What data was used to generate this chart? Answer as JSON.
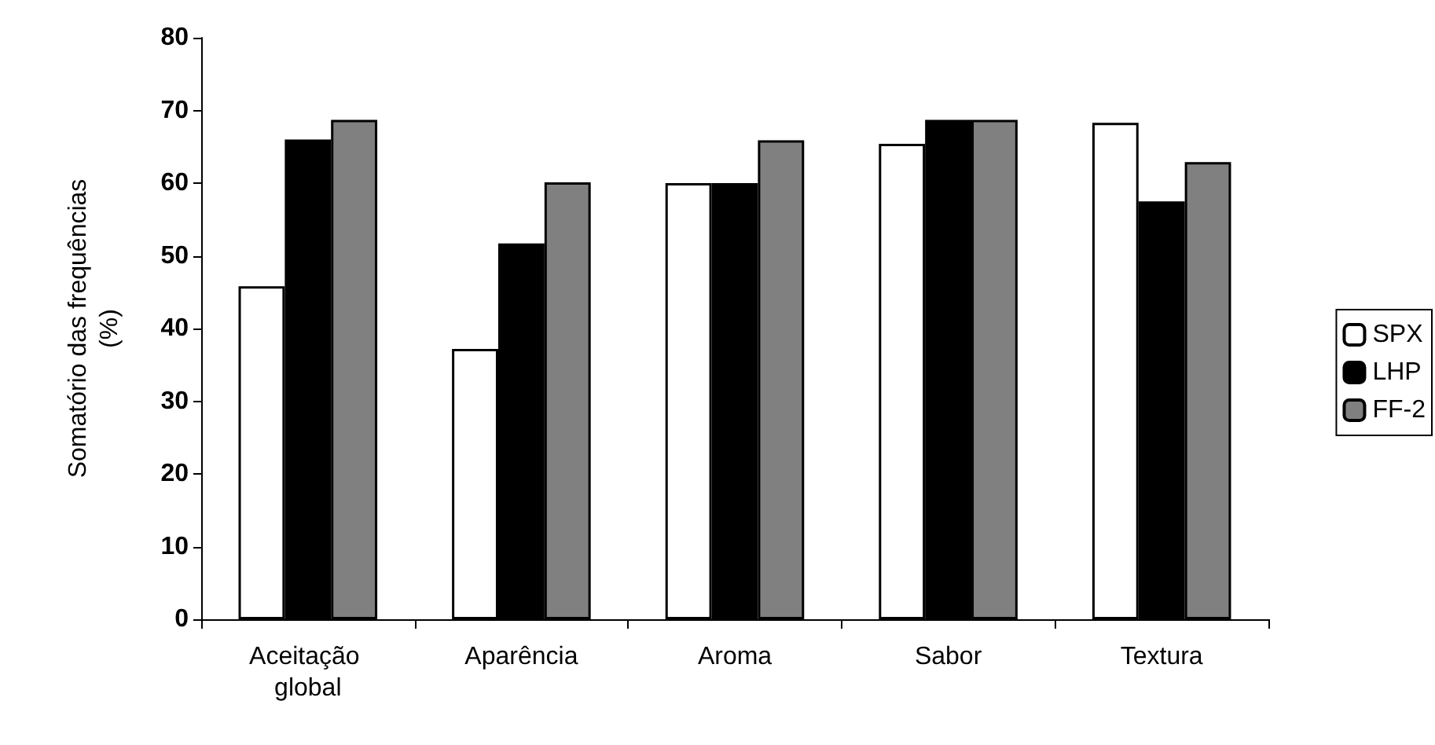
{
  "chart_data": {
    "type": "bar",
    "ylabel": "Somatório das frequências\n(%)",
    "categories": [
      "Aceitação global",
      "Aparência",
      "Aroma",
      "Sabor",
      "Textura"
    ],
    "series": [
      {
        "name": "SPX",
        "color": "#ffffff",
        "values": [
          45.8,
          37.2,
          60.0,
          65.4,
          68.3
        ]
      },
      {
        "name": "LHP",
        "color": "#000000",
        "values": [
          66.0,
          51.7,
          60.0,
          68.7,
          57.5
        ]
      },
      {
        "name": "FF-2",
        "color": "#808080",
        "values": [
          68.7,
          60.1,
          65.9,
          68.7,
          62.9
        ]
      }
    ],
    "ylim": [
      0,
      80
    ],
    "yticks": [
      0,
      10,
      20,
      30,
      40,
      50,
      60,
      70,
      80
    ],
    "grid": false,
    "legend": "right"
  }
}
